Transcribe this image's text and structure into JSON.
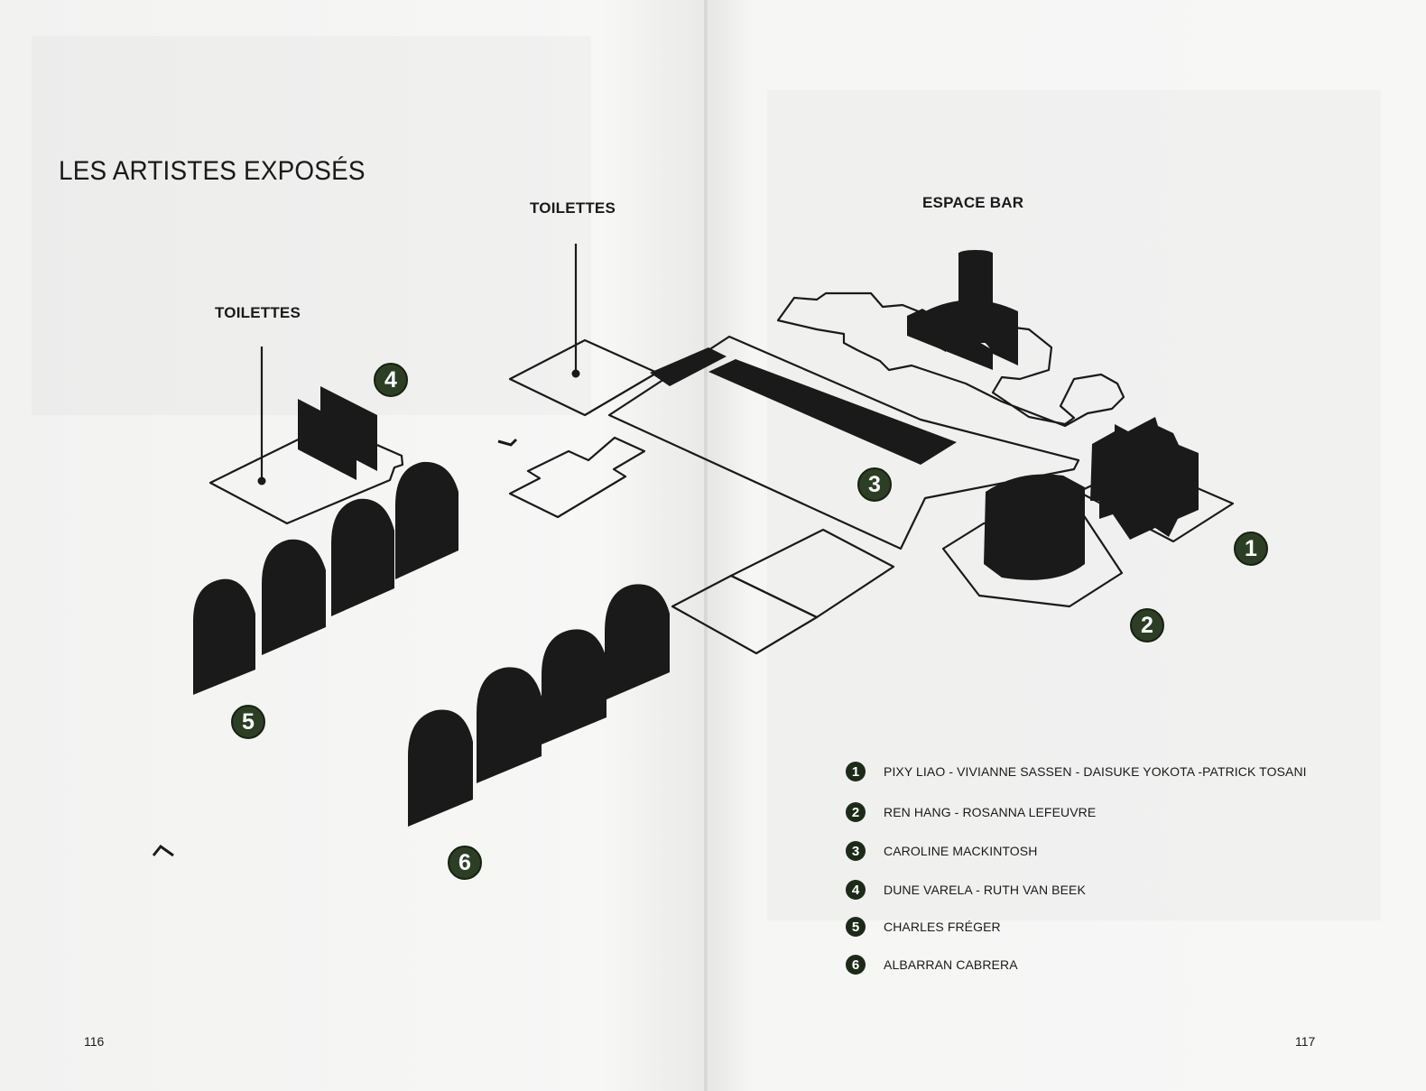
{
  "title": "LES ARTISTES EXPOSÉS",
  "map_labels": {
    "toilettes_left": "TOILETTES",
    "toilettes_center": "TOILETTES",
    "espace_bar": "ESPACE BAR"
  },
  "zones": [
    "1",
    "2",
    "3",
    "4",
    "5",
    "6"
  ],
  "legend": [
    {
      "number": "1",
      "artists": "PIXY LIAO - VIVIANNE SASSEN - DAISUKE YOKOTA -PATRICK TOSANI"
    },
    {
      "number": "2",
      "artists": "REN HANG - ROSANNA LEFEUVRE"
    },
    {
      "number": "3",
      "artists": "CAROLINE MACKINTOSH"
    },
    {
      "number": "4",
      "artists": "DUNE VARELA - RUTH VAN BEEK"
    },
    {
      "number": "5",
      "artists": "CHARLES FRÉGER"
    },
    {
      "number": "6",
      "artists": "ALBARRAN CABRERA"
    }
  ],
  "page_numbers": {
    "left": "116",
    "right": "117"
  },
  "colors": {
    "badge": "#2c3f25",
    "ink": "#1a1a1a",
    "paper": "#f4f4f2"
  }
}
